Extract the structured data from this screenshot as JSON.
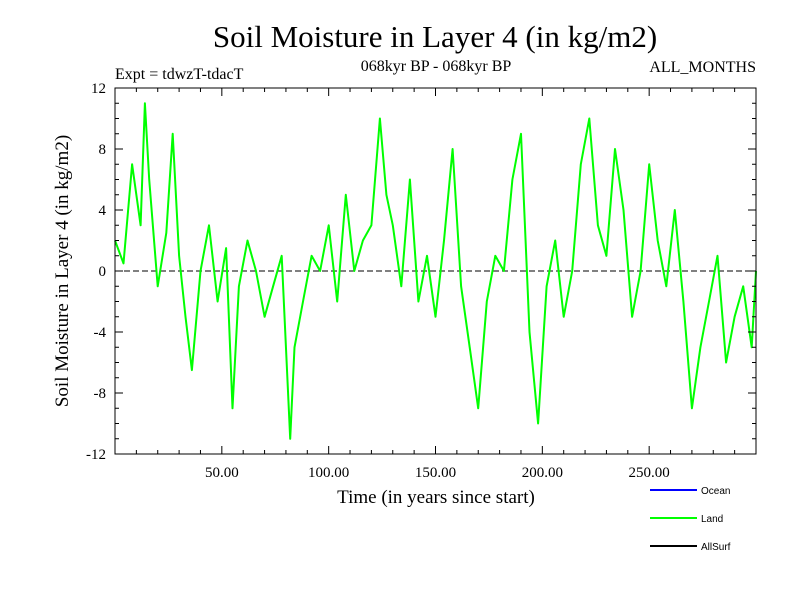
{
  "chart_data": {
    "type": "line",
    "title": "Soil Moisture in Layer 4 (in kg/m2)",
    "subtitle_left": "Expt = tdwzT-tdacT",
    "subtitle_center": "068kyr BP - 068kyr BP",
    "subtitle_right": "ALL_MONTHS",
    "xlabel": "Time (in years since start)",
    "ylabel": "Soil Moisture in Layer 4 (in kg/m2)",
    "xlim": [
      0,
      300
    ],
    "ylim": [
      -12,
      12
    ],
    "xticks": [
      50,
      100,
      150,
      200,
      250
    ],
    "xtick_labels": [
      "50.00",
      "100.00",
      "150.00",
      "200.00",
      "250.00"
    ],
    "yticks": [
      -12,
      -8,
      -4,
      0,
      4,
      8,
      12
    ],
    "ytick_labels": [
      "-12",
      "-8",
      "-4",
      "0",
      "4",
      "8",
      "12"
    ],
    "zero_line": true,
    "legend_position": "bottom-right",
    "series": [
      {
        "name": "Ocean",
        "color": "#0000ff",
        "values": []
      },
      {
        "name": "Land",
        "color": "#00ff00",
        "x": [
          0,
          4,
          8,
          12,
          14,
          16,
          20,
          24,
          27,
          30,
          33,
          36,
          40,
          44,
          48,
          52,
          55,
          58,
          62,
          66,
          70,
          74,
          78,
          82,
          84,
          88,
          92,
          96,
          100,
          104,
          108,
          112,
          116,
          120,
          124,
          127,
          130,
          134,
          138,
          142,
          146,
          150,
          154,
          158,
          162,
          166,
          170,
          174,
          178,
          182,
          186,
          190,
          194,
          198,
          202,
          206,
          210,
          214,
          218,
          222,
          226,
          230,
          234,
          238,
          242,
          246,
          250,
          254,
          258,
          262,
          266,
          270,
          274,
          278,
          282,
          286,
          290,
          294,
          298,
          300
        ],
        "values": [
          2,
          0.5,
          7,
          3,
          11,
          6,
          -1,
          2.5,
          9,
          1,
          -3,
          -6.5,
          0,
          3,
          -2,
          1.5,
          -9,
          -1,
          2,
          0,
          -3,
          -1,
          1,
          -11,
          -5,
          -2,
          1,
          0,
          3,
          -2,
          5,
          0,
          2,
          3,
          10,
          5,
          3,
          -1,
          6,
          -2,
          1,
          -3,
          2,
          8,
          -1,
          -5,
          -9,
          -2,
          1,
          0,
          6,
          9,
          -4,
          -10,
          -1,
          2,
          -3,
          0,
          7,
          10,
          3,
          1,
          8,
          4,
          -3,
          0,
          7,
          2,
          -1,
          4,
          -2,
          -9,
          -5,
          -2,
          1,
          -6,
          -3,
          -1,
          -5,
          0
        ]
      },
      {
        "name": "AllSurf",
        "color": "#000000",
        "values": []
      }
    ]
  }
}
